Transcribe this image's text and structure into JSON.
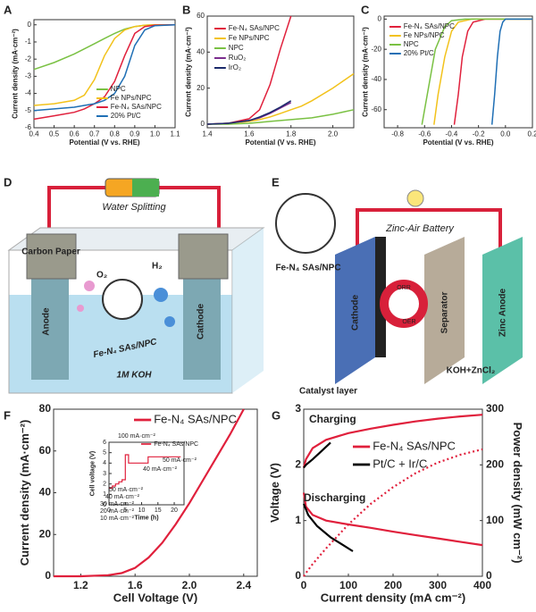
{
  "chart_data": [
    {
      "type": "line",
      "panel": "A",
      "x_label": "Potential (V vs. RHE)",
      "y_label": "Current density (mA·cm⁻²)",
      "x": [
        0.4,
        0.5,
        0.6,
        0.65,
        0.7,
        0.75,
        0.8,
        0.85,
        0.9,
        0.95,
        1.0,
        1.1
      ],
      "xlim": [
        0.4,
        1.1
      ],
      "xticks": [
        0.4,
        0.5,
        0.6,
        0.7,
        0.8,
        0.9,
        {
          "value": 1.0,
          "label": "1.0"
        },
        1.1
      ],
      "ylim": [
        -6,
        0.3
      ],
      "yticks": [
        -6,
        -5,
        -4,
        -3,
        -2,
        -1,
        0
      ],
      "series": [
        {
          "name": "NPC",
          "color": "#7ac143",
          "values": [
            -2.6,
            -2.2,
            -1.7,
            -1.4,
            -1.1,
            -0.8,
            -0.5,
            -0.25,
            -0.1,
            -0.03,
            0,
            0
          ]
        },
        {
          "name": "Fe NPs/NPC",
          "color": "#f2c21b",
          "values": [
            -4.7,
            -4.6,
            -4.4,
            -4.1,
            -3.2,
            -1.8,
            -0.8,
            -0.3,
            -0.1,
            -0.03,
            0,
            0
          ]
        },
        {
          "name": "Fe-N₄ SAs/NPC",
          "color": "#e0203c",
          "values": [
            -5.5,
            -5.3,
            -5.1,
            -4.9,
            -4.6,
            -4.2,
            -3.3,
            -1.8,
            -0.5,
            -0.1,
            -0.02,
            0
          ]
        },
        {
          "name": "20% Pt/C",
          "color": "#1f6fb5",
          "values": [
            -5.0,
            -4.9,
            -4.8,
            -4.7,
            -4.6,
            -4.4,
            -4.0,
            -3.0,
            -1.2,
            -0.3,
            -0.05,
            0
          ]
        }
      ]
    },
    {
      "type": "line",
      "panel": "B",
      "x_label": "Potential (V vs. RHE)",
      "y_label": "Current density (mA·cm⁻²)",
      "x": [
        1.4,
        1.5,
        1.6,
        1.65,
        1.7,
        1.75,
        1.8,
        1.85,
        1.9,
        2.0,
        2.1
      ],
      "xlim": [
        1.4,
        2.1
      ],
      "xticks": [
        1.4,
        1.6,
        1.8,
        {
          "value": 2.0,
          "label": "2.0"
        }
      ],
      "ylim": [
        -2,
        60
      ],
      "yticks": [
        0,
        20,
        40,
        60
      ],
      "series": [
        {
          "name": "Fe-N₄ SAs/NPC",
          "color": "#e0203c",
          "values": [
            0,
            0.5,
            3,
            8,
            22,
            42,
            60,
            null,
            null,
            null,
            null
          ]
        },
        {
          "name": "Fe NPs/NPC",
          "color": "#f2c21b",
          "values": [
            0,
            0.5,
            1.5,
            2.5,
            4,
            6,
            8,
            10,
            13,
            20,
            28
          ]
        },
        {
          "name": "NPC",
          "color": "#7ac143",
          "values": [
            0,
            0,
            0.5,
            1,
            1.5,
            2,
            2.5,
            3,
            3.5,
            5.5,
            8
          ]
        },
        {
          "name": "RuO₂",
          "color": "#7b2d8e",
          "values": [
            0,
            0.5,
            2,
            3.5,
            6,
            9,
            12,
            null,
            null,
            null,
            null
          ]
        },
        {
          "name": "IrO₂",
          "color": "#1b2a6b",
          "values": [
            0,
            0.5,
            2,
            4,
            6.5,
            9.5,
            13,
            null,
            null,
            null,
            null
          ]
        }
      ]
    },
    {
      "type": "line",
      "panel": "C",
      "x_label": "Potential (V vs. RHE)",
      "y_label": "Current density (mA·cm⁻²)",
      "xlim": [
        -0.9,
        0.2
      ],
      "xticks": [
        -0.8,
        -0.6,
        -0.4,
        -0.2,
        {
          "value": 0,
          "label": "0.0"
        },
        0.2
      ],
      "ylim": [
        -72,
        2
      ],
      "yticks": [
        -60,
        -40,
        -20,
        0
      ],
      "series": [
        {
          "name": "Fe-N₄ SAs/NPC",
          "color": "#e0203c",
          "x": [
            -0.38,
            -0.35,
            -0.32,
            -0.28,
            -0.24,
            -0.15,
            0.2
          ],
          "values": [
            -70,
            -50,
            -25,
            -8,
            -2,
            0,
            0
          ]
        },
        {
          "name": "Fe NPs/NPC",
          "color": "#f2c21b",
          "x": [
            -0.53,
            -0.5,
            -0.45,
            -0.4,
            -0.35,
            -0.25,
            0.2
          ],
          "values": [
            -70,
            -50,
            -25,
            -8,
            -2,
            0,
            0
          ]
        },
        {
          "name": "NPC",
          "color": "#7ac143",
          "x": [
            -0.62,
            -0.58,
            -0.52,
            -0.45,
            -0.4,
            -0.3,
            0.2
          ],
          "values": [
            -70,
            -50,
            -20,
            -5,
            -1,
            0,
            0
          ]
        },
        {
          "name": "20% Pt/C",
          "color": "#1f6fb5",
          "x": [
            -0.1,
            -0.08,
            -0.06,
            -0.04,
            -0.02,
            0,
            0.2
          ],
          "values": [
            -70,
            -50,
            -25,
            -8,
            -2,
            0,
            0
          ]
        }
      ]
    },
    {
      "type": "line",
      "panel": "F",
      "x_label": "Cell Voltage (V)",
      "y_label": "Current density (mA·cm⁻²)",
      "x": [
        1.0,
        1.2,
        1.4,
        1.5,
        1.6,
        1.7,
        1.8,
        1.9,
        2.0,
        2.1,
        2.2,
        2.3,
        2.4
      ],
      "xlim": [
        1.0,
        2.5
      ],
      "xticks": [
        1.2,
        1.6,
        {
          "value": 2.0,
          "label": "2.0"
        },
        2.4
      ],
      "ylim": [
        0,
        80
      ],
      "yticks": [
        0,
        20,
        40,
        60,
        80
      ],
      "series": [
        {
          "name": "Fe-N₄ SAs/NPC",
          "color": "#e0203c",
          "values": [
            0,
            0,
            0.5,
            1.5,
            4,
            9,
            16,
            25,
            35,
            46,
            57,
            68,
            80
          ]
        }
      ]
    },
    {
      "type": "line",
      "x_label": "Time (h)",
      "y_label": "Cell voltage (V)",
      "x": [
        0,
        1,
        1,
        2,
        2,
        3,
        3,
        4,
        4,
        5,
        5,
        6,
        6,
        12,
        12,
        22
      ],
      "xlim": [
        0,
        23
      ],
      "xticks": [
        0,
        5,
        10,
        15,
        20
      ],
      "ylim": [
        0,
        6
      ],
      "yticks": [
        0,
        1,
        2,
        3,
        4,
        5,
        6
      ],
      "annotations": [
        "10 mA·cm⁻²",
        "20 mA·cm⁻²",
        "30 mA·cm⁻²",
        "40 mA·cm⁻²",
        "50 mA·cm⁻²",
        "100 mA·cm⁻²",
        "40 mA·cm⁻²",
        "50 mA·cm⁻²"
      ],
      "series": [
        {
          "name": "Fe-N₄ SAs/NPC",
          "color": "#e0203c",
          "values": [
            1.6,
            1.6,
            1.8,
            1.8,
            2.0,
            2.0,
            2.2,
            2.2,
            2.4,
            2.4,
            4.8,
            4.8,
            4.0,
            4.0,
            4.6,
            4.6
          ]
        }
      ]
    },
    {
      "type": "line",
      "panel": "G",
      "x_label": "Current density (mA cm⁻²)",
      "y_label": "Voltage (V)",
      "y2_label": "Power density (mW cm⁻²)",
      "xlim": [
        0,
        400
      ],
      "xticks": [
        0,
        100,
        200,
        300,
        400
      ],
      "ylim": [
        0,
        3
      ],
      "yticks": [
        0,
        1,
        2,
        3
      ],
      "y2lim": [
        0,
        300
      ],
      "y2ticks": [
        0,
        100,
        200,
        300
      ],
      "annotations": [
        "Charging",
        "Discharging"
      ],
      "legend": [
        {
          "name": "Fe-N₄ SAs/NPC",
          "color": "#e0203c"
        },
        {
          "name": "Pt/C + Ir/C",
          "color": "#000000"
        }
      ],
      "series": [
        {
          "color": "#e0203c",
          "x": [
            0,
            5,
            20,
            50,
            100,
            150,
            200,
            250,
            300,
            350,
            400
          ],
          "values": [
            1.95,
            2.1,
            2.3,
            2.45,
            2.57,
            2.65,
            2.72,
            2.78,
            2.83,
            2.87,
            2.9
          ]
        },
        {
          "color": "#e0203c",
          "x": [
            0,
            5,
            20,
            50,
            100,
            150,
            200,
            250,
            300,
            350,
            400
          ],
          "values": [
            1.5,
            1.25,
            1.1,
            1.0,
            0.93,
            0.87,
            0.8,
            0.74,
            0.68,
            0.62,
            0.56
          ]
        },
        {
          "color": "#e0203c",
          "axis": "y2",
          "dash": true,
          "x": [
            0,
            5,
            20,
            50,
            100,
            150,
            200,
            250,
            300,
            350,
            400
          ],
          "values": [
            0,
            6,
            22,
            50,
            93,
            130,
            160,
            185,
            204,
            218,
            228
          ]
        },
        {
          "color": "#000000",
          "x": [
            0,
            5,
            20,
            40,
            60
          ],
          "values": [
            1.95,
            2.0,
            2.1,
            2.25,
            2.4
          ]
        },
        {
          "color": "#000000",
          "x": [
            0,
            10,
            30,
            60,
            90,
            110
          ],
          "values": [
            1.3,
            1.1,
            0.9,
            0.7,
            0.55,
            0.45
          ]
        }
      ]
    }
  ],
  "diagrams": {
    "D": {
      "panel": "D",
      "title": "Water Splitting",
      "labels": [
        "Carbon Paper",
        "Anode",
        "Cathode",
        "O₂",
        "H₂",
        "Fe-N₄ SAs/NPC",
        "1M KOH"
      ]
    },
    "E": {
      "panel": "E",
      "title": "Zinc-Air Battery",
      "labels": [
        "Fe-N₄ SAs/NPC",
        "Cathode",
        "ORR",
        "OER",
        "Separator",
        "Zinc Anode",
        "Catalyst layer",
        "KOH+ZnCl₂"
      ]
    }
  }
}
